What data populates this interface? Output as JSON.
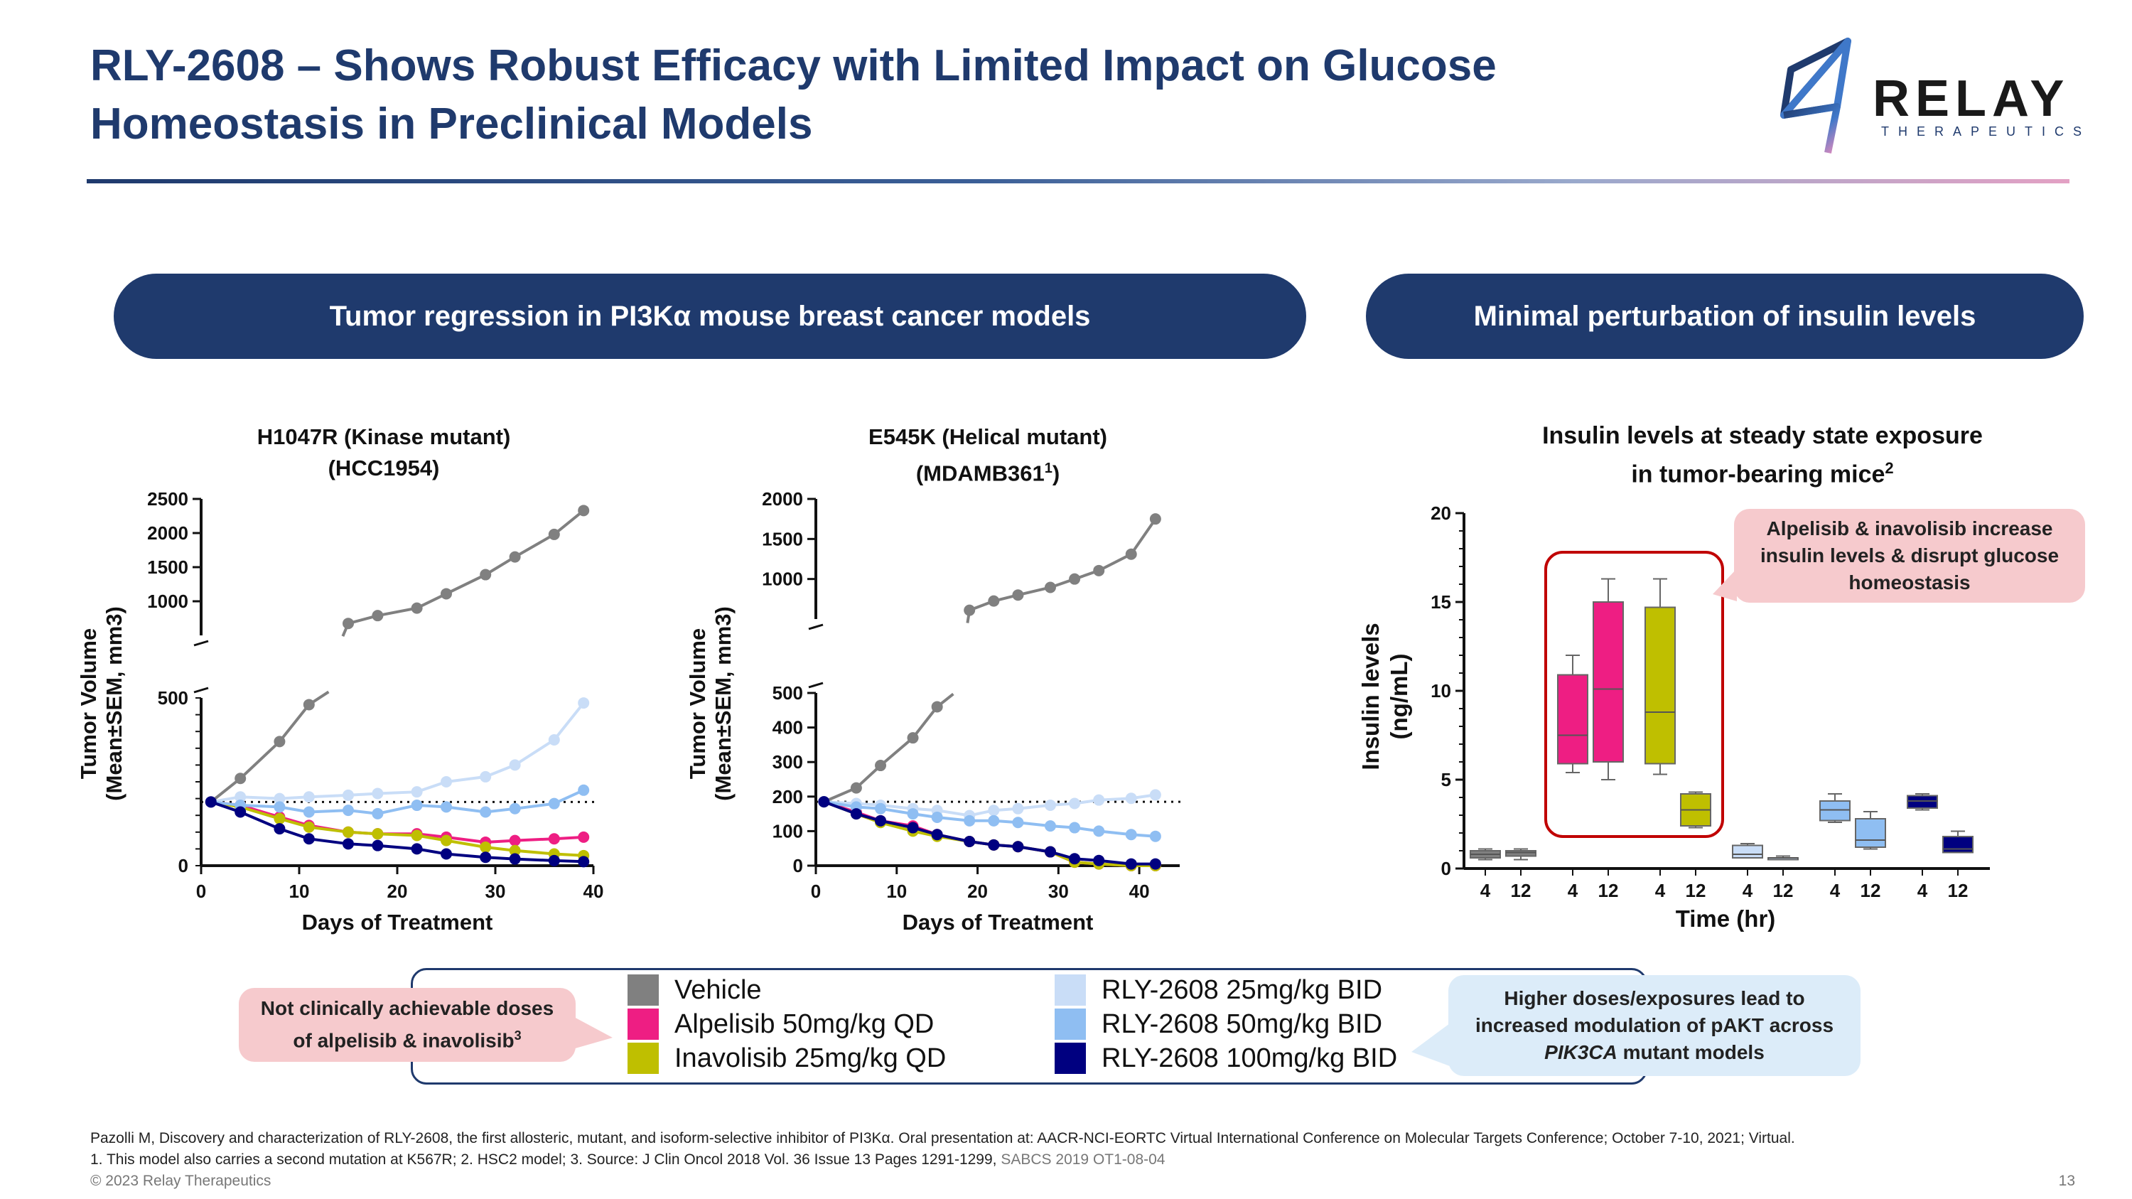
{
  "title": {
    "line1": "RLY-2608 – Shows Robust Efficacy with Limited Impact on Glucose",
    "line2": "Homeostasis in Preclinical Models"
  },
  "logo": {
    "name": "RELAY",
    "sub": "THERAPEUTICS"
  },
  "section_left": {
    "label": "Tumor regression in PI3Kα mouse breast cancer models"
  },
  "section_right": {
    "label": "Minimal perturbation of insulin levels"
  },
  "colors": {
    "navy": "#1f3a6d",
    "vehicle": "#808080",
    "alpelisib": "#ee1e83",
    "inavolisib": "#bfbf00",
    "rly25": "#c9ddf7",
    "rly50": "#8fbef2",
    "rly100": "#000080",
    "highlight": "#c00000"
  },
  "chart_data": [
    {
      "type": "line",
      "title_line1": "H1047R (Kinase mutant)",
      "title_line2": "(HCC1954)",
      "xlabel": "Days of Treatment",
      "ylabel_line1": "Tumor Volume",
      "ylabel_line2": "(Mean±SEM, mm3)",
      "xlim": [
        0,
        40
      ],
      "xticks": [
        0,
        10,
        20,
        30,
        40
      ],
      "ylim_lower": [
        0,
        500
      ],
      "ylim_upper": [
        500,
        2500
      ],
      "yticks_upper": [
        1000,
        1500,
        2000,
        2500
      ],
      "ytick_break": 500,
      "ytick_zero": 0,
      "baseline": 190,
      "series": [
        {
          "name": "Vehicle",
          "x": [
            1,
            4,
            8,
            11,
            15,
            18,
            22,
            25,
            29,
            32,
            36,
            39
          ],
          "y": [
            190,
            260,
            370,
            480,
            675,
            790,
            900,
            1110,
            1390,
            1650,
            1980,
            2330
          ]
        },
        {
          "name": "Alpelisib 50mg/kg QD",
          "x": [
            1,
            4,
            8,
            11,
            15,
            18,
            22,
            25,
            29,
            32,
            36,
            39
          ],
          "y": [
            190,
            180,
            145,
            120,
            100,
            95,
            95,
            85,
            70,
            75,
            80,
            85
          ]
        },
        {
          "name": "Inavolisib 25mg/kg QD",
          "x": [
            1,
            4,
            8,
            11,
            15,
            18,
            22,
            25,
            29,
            32,
            36,
            39
          ],
          "y": [
            190,
            175,
            140,
            115,
            100,
            95,
            90,
            75,
            55,
            45,
            35,
            30
          ]
        },
        {
          "name": "RLY-2608 25mg/kg BID",
          "x": [
            1,
            4,
            8,
            11,
            15,
            18,
            22,
            25,
            29,
            32,
            36,
            39
          ],
          "y": [
            190,
            205,
            200,
            205,
            210,
            215,
            220,
            250,
            265,
            300,
            375,
            485
          ]
        },
        {
          "name": "RLY-2608 50mg/kg BID",
          "x": [
            1,
            4,
            8,
            11,
            15,
            18,
            22,
            25,
            29,
            32,
            36,
            39
          ],
          "y": [
            190,
            180,
            175,
            160,
            165,
            155,
            180,
            175,
            160,
            170,
            185,
            225
          ]
        },
        {
          "name": "RLY-2608 100mg/kg BID",
          "x": [
            1,
            4,
            8,
            11,
            15,
            18,
            22,
            25,
            29,
            32,
            36,
            39
          ],
          "y": [
            190,
            160,
            110,
            80,
            65,
            60,
            50,
            35,
            25,
            20,
            15,
            12
          ]
        }
      ]
    },
    {
      "type": "line",
      "title_line1": "E545K (Helical mutant)",
      "title_line2": "(MDAMB361",
      "title_sup": "1",
      "title_close": ")",
      "xlabel": "Days of Treatment",
      "ylabel_line1": "Tumor Volume",
      "ylabel_line2": "(Mean±SEM, mm3)",
      "xlim": [
        0,
        45
      ],
      "xticks": [
        0,
        10,
        20,
        30,
        40
      ],
      "ylim_lower": [
        0,
        500
      ],
      "ylim_upper": [
        500,
        2000
      ],
      "yticks_lower": [
        0,
        100,
        200,
        300,
        400,
        500
      ],
      "yticks_upper": [
        1000,
        1500,
        2000
      ],
      "baseline": 185,
      "series": [
        {
          "name": "Vehicle",
          "x": [
            1,
            5,
            8,
            12,
            15,
            19,
            22,
            25,
            29,
            32,
            35,
            39,
            42
          ],
          "y": [
            185,
            225,
            290,
            370,
            460,
            610,
            725,
            800,
            895,
            1000,
            1105,
            1310,
            1750
          ]
        },
        {
          "name": "Alpelisib 50mg/kg QD",
          "x": [
            1,
            5,
            8,
            12,
            15,
            19,
            22,
            25,
            29,
            32,
            35,
            39,
            42
          ],
          "y": [
            185,
            155,
            130,
            115,
            90,
            70,
            60,
            55,
            40,
            10,
            5,
            0,
            0
          ]
        },
        {
          "name": "Inavolisib 25mg/kg QD",
          "x": [
            1,
            5,
            8,
            12,
            15,
            19,
            22,
            25,
            29,
            32,
            35,
            39,
            42
          ],
          "y": [
            185,
            150,
            125,
            100,
            85,
            70,
            60,
            55,
            40,
            10,
            5,
            0,
            0
          ]
        },
        {
          "name": "RLY-2608 25mg/kg BID",
          "x": [
            1,
            5,
            8,
            12,
            15,
            19,
            22,
            25,
            29,
            32,
            35,
            39,
            42
          ],
          "y": [
            185,
            180,
            175,
            165,
            160,
            145,
            160,
            165,
            175,
            180,
            190,
            195,
            205
          ]
        },
        {
          "name": "RLY-2608 50mg/kg BID",
          "x": [
            1,
            5,
            8,
            12,
            15,
            19,
            22,
            25,
            29,
            32,
            35,
            39,
            42
          ],
          "y": [
            185,
            170,
            165,
            150,
            140,
            130,
            130,
            125,
            115,
            110,
            100,
            90,
            85
          ]
        },
        {
          "name": "RLY-2608 100mg/kg BID",
          "x": [
            1,
            5,
            8,
            12,
            15,
            19,
            22,
            25,
            29,
            32,
            35,
            39,
            42
          ],
          "y": [
            185,
            150,
            130,
            110,
            90,
            70,
            60,
            55,
            40,
            20,
            15,
            5,
            5
          ]
        }
      ]
    },
    {
      "type": "box",
      "title_line1": "Insulin levels at steady state exposure",
      "title_line2": "in tumor-bearing mice",
      "title_sup": "2",
      "xlabel": "Time (hr)",
      "ylabel_line1": "Insulin levels",
      "ylabel_line2": "(ng/mL)",
      "ylim": [
        0,
        20
      ],
      "yticks": [
        0,
        5,
        10,
        15,
        20
      ],
      "categories": [
        "4",
        "12"
      ],
      "groups": [
        {
          "name": "Vehicle",
          "boxes": [
            {
              "time": "4",
              "min": 0.5,
              "q1": 0.6,
              "median": 0.8,
              "q3": 1.0,
              "max": 1.1
            },
            {
              "time": "12",
              "min": 0.5,
              "q1": 0.7,
              "median": 0.9,
              "q3": 1.0,
              "max": 1.1
            }
          ]
        },
        {
          "name": "Alpelisib 50mg/kg QD",
          "boxes": [
            {
              "time": "4",
              "min": 5.4,
              "q1": 5.9,
              "median": 7.5,
              "q3": 10.9,
              "max": 12.0
            },
            {
              "time": "12",
              "min": 5.0,
              "q1": 6.0,
              "median": 10.1,
              "q3": 15.0,
              "max": 16.3
            }
          ]
        },
        {
          "name": "Inavolisib 25mg/kg QD",
          "boxes": [
            {
              "time": "4",
              "min": 5.3,
              "q1": 5.9,
              "median": 8.8,
              "q3": 14.7,
              "max": 16.3
            },
            {
              "time": "12",
              "min": 2.3,
              "q1": 2.4,
              "median": 3.3,
              "q3": 4.2,
              "max": 4.3
            }
          ]
        },
        {
          "name": "RLY-2608 25mg/kg BID",
          "boxes": [
            {
              "time": "4",
              "min": 0.6,
              "q1": 0.6,
              "median": 0.8,
              "q3": 1.3,
              "max": 1.4
            },
            {
              "time": "12",
              "min": 0.5,
              "q1": 0.5,
              "median": 0.6,
              "q3": 0.6,
              "max": 0.7
            }
          ]
        },
        {
          "name": "RLY-2608 50mg/kg BID",
          "boxes": [
            {
              "time": "4",
              "min": 2.6,
              "q1": 2.7,
              "median": 3.3,
              "q3": 3.8,
              "max": 4.2
            },
            {
              "time": "12",
              "min": 1.1,
              "q1": 1.2,
              "median": 1.6,
              "q3": 2.8,
              "max": 3.2
            }
          ]
        },
        {
          "name": "RLY-2608 100mg/kg BID",
          "boxes": [
            {
              "time": "4",
              "min": 3.3,
              "q1": 3.4,
              "median": 3.8,
              "q3": 4.1,
              "max": 4.2
            },
            {
              "time": "12",
              "min": 0.9,
              "q1": 0.9,
              "median": 1.1,
              "q3": 1.8,
              "max": 2.1
            }
          ]
        }
      ]
    }
  ],
  "callout_insulin": {
    "line1": "Alpelisib & inavolisib increase",
    "line2": "insulin levels & disrupt glucose",
    "line3": "homeostasis"
  },
  "callout_doses": {
    "line1": "Not clinically achievable doses",
    "line2": "of alpelisib & inavolisib",
    "sup": "3"
  },
  "callout_pakt": {
    "line1": "Higher doses/exposures lead to",
    "line2": "increased modulation of pAKT across",
    "line3_italic": "PIK3CA",
    "line3_rest": " mutant models"
  },
  "legend": [
    {
      "label": "Vehicle",
      "color": "#808080"
    },
    {
      "label": "Alpelisib 50mg/kg QD",
      "color": "#ee1e83"
    },
    {
      "label": "Inavolisib 25mg/kg QD",
      "color": "#bfbf00"
    },
    {
      "label": "RLY-2608 25mg/kg BID",
      "color": "#c9ddf7"
    },
    {
      "label": "RLY-2608 50mg/kg BID",
      "color": "#8fbef2"
    },
    {
      "label": "RLY-2608 100mg/kg BID",
      "color": "#000080"
    }
  ],
  "footnotes": {
    "ref": "Pazolli M, Discovery and characterization of RLY-2608, the first allosteric, mutant, and isoform-selective inhibitor of PI3Kα. Oral presentation at: AACR-NCI-EORTC Virtual International Conference on Molecular Targets Conference; October 7-10, 2021; Virtual.",
    "notes": "1. This model also carries a second mutation at K567R; 2. HSC2 model;  3. Source: J Clin Oncol 2018 Vol. 36 Issue 13 Pages 1291-1299,",
    "sabcs": "SABCS 2019 OT1-08-04",
    "copyright": "© 2023 Relay Therapeutics",
    "page": "13"
  }
}
